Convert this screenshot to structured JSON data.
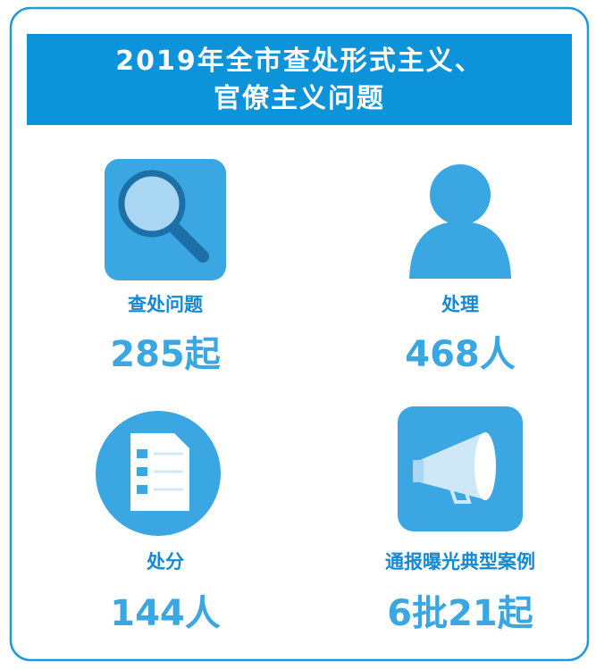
{
  "header": {
    "title_lines": [
      "2019年全市查处形式主义、",
      "官僚主义问题"
    ]
  },
  "items": [
    {
      "label": "查处问题",
      "value": "285起"
    },
    {
      "label": "处理",
      "value": "468人"
    },
    {
      "label": "处分",
      "value": "144人"
    },
    {
      "label": "通报曝光典型案例",
      "value": "6批21起"
    }
  ]
}
